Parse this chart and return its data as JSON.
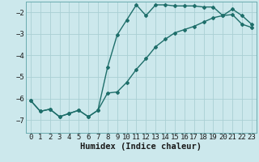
{
  "xlabel": "Humidex (Indice chaleur)",
  "ylabel": "",
  "bg_color": "#cce8ec",
  "grid_color": "#aacfd4",
  "line_color": "#1e6e6a",
  "xlim": [
    -0.5,
    23.5
  ],
  "ylim": [
    -7.6,
    -1.5
  ],
  "xticks": [
    0,
    1,
    2,
    3,
    4,
    5,
    6,
    7,
    8,
    9,
    10,
    11,
    12,
    13,
    14,
    15,
    16,
    17,
    18,
    19,
    20,
    21,
    22,
    23
  ],
  "yticks": [
    -2,
    -3,
    -4,
    -5,
    -6,
    -7
  ],
  "upper_x": [
    0,
    1,
    2,
    3,
    4,
    5,
    6,
    7,
    8,
    9,
    10,
    11,
    12,
    13,
    14,
    15,
    16,
    17,
    18,
    19,
    20,
    21,
    22,
    23
  ],
  "upper_y": [
    -6.1,
    -6.6,
    -6.5,
    -6.85,
    -6.7,
    -6.55,
    -6.85,
    -6.55,
    -4.55,
    -3.05,
    -2.35,
    -1.65,
    -2.15,
    -1.65,
    -1.65,
    -1.7,
    -1.7,
    -1.7,
    -1.75,
    -1.75,
    -2.15,
    -1.85,
    -2.15,
    -2.55
  ],
  "lower_x": [
    0,
    1,
    2,
    3,
    4,
    5,
    6,
    7,
    8,
    9,
    10,
    11,
    12,
    13,
    14,
    15,
    16,
    17,
    18,
    19,
    20,
    21,
    22,
    23
  ],
  "lower_y": [
    -6.1,
    -6.6,
    -6.5,
    -6.85,
    -6.7,
    -6.55,
    -6.85,
    -6.55,
    -5.75,
    -5.7,
    -5.25,
    -4.65,
    -4.15,
    -3.6,
    -3.25,
    -2.95,
    -2.8,
    -2.65,
    -2.45,
    -2.25,
    -2.15,
    -2.1,
    -2.55,
    -2.7
  ],
  "marker": "D",
  "markersize": 2.0,
  "linewidth": 1.0,
  "label_fontsize": 7.5,
  "tick_fontsize": 6.5
}
